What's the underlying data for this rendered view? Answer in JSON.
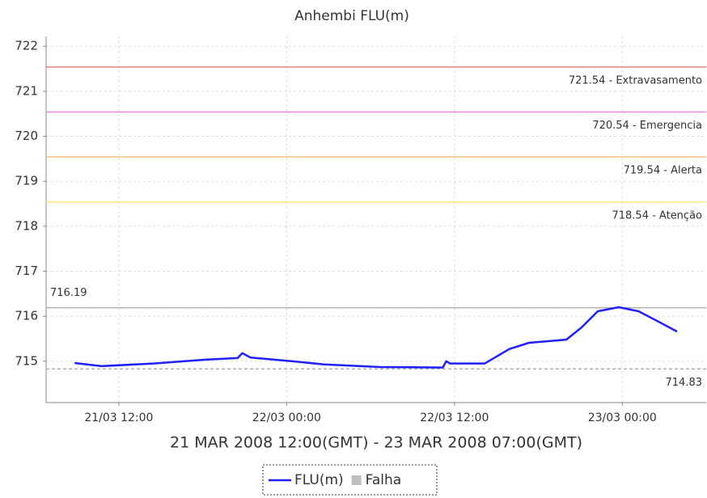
{
  "chart_data": {
    "type": "line",
    "title": "Anhembi FLU(m)",
    "x_label": "21 MAR 2008 12:00(GMT) - 23 MAR 2008 07:00(GMT)",
    "x": [
      "2008-03-21 08:50",
      "2008-03-21 10:45",
      "2008-03-21 14:30",
      "2008-03-21 18:00",
      "2008-03-21 20:30",
      "2008-03-21 20:50",
      "2008-03-21 21:25",
      "2008-03-22 00:20",
      "2008-03-22 02:40",
      "2008-03-22 06:40",
      "2008-03-22 11:10",
      "2008-03-22 11:25",
      "2008-03-22 11:40",
      "2008-03-22 14:10",
      "2008-03-22 15:55",
      "2008-03-22 17:20",
      "2008-03-22 20:00",
      "2008-03-22 21:05",
      "2008-03-22 22:15",
      "2008-03-22 23:45",
      "2008-03-23 01:10",
      "2008-03-23 02:35",
      "2008-03-23 03:55"
    ],
    "series": [
      {
        "name": "FLU(m)",
        "color": "#1f1fff",
        "values": [
          714.96,
          714.89,
          714.95,
          715.03,
          715.07,
          715.18,
          715.08,
          715.0,
          714.93,
          714.87,
          714.86,
          715.0,
          714.95,
          714.95,
          715.27,
          715.41,
          715.48,
          715.75,
          716.11,
          716.2,
          716.11,
          715.88,
          715.66
        ]
      }
    ],
    "failure_marker": {
      "name": "Falha",
      "color": "#c0c0c0"
    },
    "thresholds": [
      {
        "value": 721.54,
        "label": "721.54 - Extravasamento",
        "color": "#f08080"
      },
      {
        "value": 720.54,
        "label": "720.54 - Emergencia",
        "color": "#ee82ee"
      },
      {
        "value": 719.54,
        "label": "719.54 - Alerta",
        "color": "#ffbf80"
      },
      {
        "value": 718.54,
        "label": "718.54 - Atenção",
        "color": "#ffe680"
      }
    ],
    "max_line": {
      "value": 716.19,
      "label": "716.19",
      "color": "#b0b0b0"
    },
    "min_line": {
      "value": 714.83,
      "label": "714.83",
      "color": "#b0b0b0"
    },
    "xlim": [
      "2008-03-21 06:48",
      "2008-03-23 06:00"
    ],
    "xticks": [
      {
        "value": "2008-03-21 12:00",
        "label": "21/03 12:00"
      },
      {
        "value": "2008-03-22 00:00",
        "label": "22/03 00:00"
      },
      {
        "value": "2008-03-22 12:00",
        "label": "22/03 12:00"
      },
      {
        "value": "2008-03-23 00:00",
        "label": "23/03 00:00"
      }
    ],
    "ylim": [
      714.08,
      722.22
    ],
    "yticks": [
      715,
      716,
      717,
      718,
      719,
      720,
      721,
      722
    ],
    "grid": true
  }
}
